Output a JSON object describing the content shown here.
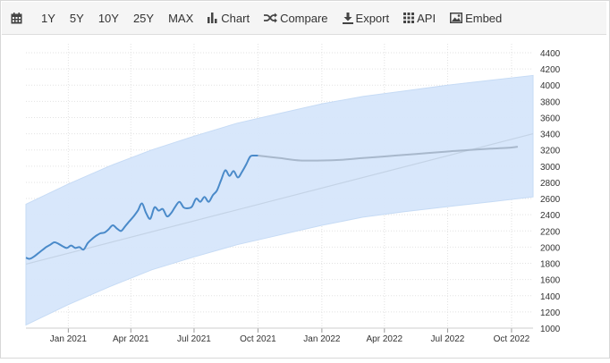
{
  "toolbar": {
    "calendar_icon": "calendar-icon",
    "ranges": [
      "1Y",
      "5Y",
      "10Y",
      "25Y",
      "MAX"
    ],
    "chart_label": "Chart",
    "compare_label": "Compare",
    "export_label": "Export",
    "api_label": "API",
    "embed_label": "Embed"
  },
  "chart_data": {
    "type": "line",
    "title": "",
    "xlabel": "",
    "ylabel": "",
    "ylim": [
      1000,
      4400
    ],
    "yticks": [
      1000,
      1200,
      1400,
      1600,
      1800,
      2000,
      2200,
      2400,
      2600,
      2800,
      3000,
      3200,
      3400,
      3600,
      3800,
      4000,
      4200,
      4400
    ],
    "xticks": [
      "2021-01-01",
      "2021-04-01",
      "2021-07-01",
      "2021-10-01",
      "2022-01-01",
      "2022-04-01",
      "2022-07-01",
      "2022-10-01"
    ],
    "xtick_labels": [
      "Jan 2021",
      "Apr 2021",
      "Jul 2021",
      "Oct 2021",
      "Jan 2022",
      "Apr 2022",
      "Jul 2022",
      "Oct 2022"
    ],
    "xlim": [
      "2020-11-01",
      "2022-11-01"
    ],
    "grid": true,
    "colors": {
      "actual": "#4a8ac9",
      "forecast": "#a8b8cc",
      "band": "#d6e6fb",
      "trend": "#c4d3e6"
    },
    "series": [
      {
        "role": "actual",
        "x": [
          "2020-11-01",
          "2020-11-06",
          "2020-11-12",
          "2020-11-18",
          "2020-11-24",
          "2020-11-30",
          "2020-12-06",
          "2020-12-12",
          "2020-12-18",
          "2020-12-24",
          "2020-12-30",
          "2021-01-05",
          "2021-01-11",
          "2021-01-17",
          "2021-01-23",
          "2021-01-29",
          "2021-02-04",
          "2021-02-10",
          "2021-02-16",
          "2021-02-22",
          "2021-02-28",
          "2021-03-06",
          "2021-03-12",
          "2021-03-18",
          "2021-03-24",
          "2021-03-30",
          "2021-04-05",
          "2021-04-11",
          "2021-04-17",
          "2021-04-23",
          "2021-04-29",
          "2021-05-05",
          "2021-05-11",
          "2021-05-17",
          "2021-05-23",
          "2021-05-29",
          "2021-06-04",
          "2021-06-10",
          "2021-06-16",
          "2021-06-22",
          "2021-06-28",
          "2021-07-04",
          "2021-07-10",
          "2021-07-16",
          "2021-07-22",
          "2021-07-28",
          "2021-08-03",
          "2021-08-09",
          "2021-08-15",
          "2021-08-21",
          "2021-08-27",
          "2021-09-02",
          "2021-09-08",
          "2021-09-14",
          "2021-09-20",
          "2021-09-26",
          "2021-10-01"
        ],
        "y": [
          1870,
          1855,
          1880,
          1920,
          1960,
          2000,
          2030,
          2060,
          2040,
          2010,
          1990,
          2020,
          1990,
          2000,
          1970,
          2050,
          2100,
          2140,
          2170,
          2180,
          2220,
          2270,
          2230,
          2200,
          2260,
          2320,
          2380,
          2450,
          2540,
          2420,
          2350,
          2490,
          2450,
          2470,
          2380,
          2420,
          2500,
          2560,
          2490,
          2480,
          2500,
          2600,
          2560,
          2620,
          2560,
          2640,
          2700,
          2830,
          2950,
          2880,
          2940,
          2860,
          2930,
          3020,
          3120,
          3130,
          3130
        ]
      },
      {
        "role": "forecast",
        "x": [
          "2021-10-01",
          "2021-11-01",
          "2021-12-01",
          "2022-01-01",
          "2022-02-01",
          "2022-03-01",
          "2022-04-01",
          "2022-05-01",
          "2022-06-01",
          "2022-07-01",
          "2022-08-01",
          "2022-09-01",
          "2022-10-01",
          "2022-10-10"
        ],
        "y": [
          3130,
          3100,
          3070,
          3070,
          3080,
          3100,
          3120,
          3140,
          3160,
          3180,
          3200,
          3215,
          3230,
          3240
        ]
      },
      {
        "role": "trend",
        "x": [
          "2020-11-01",
          "2022-11-01"
        ],
        "y": [
          1790,
          3400
        ]
      },
      {
        "role": "band",
        "x": [
          "2020-11-01",
          "2021-01-01",
          "2021-03-01",
          "2021-05-01",
          "2021-07-01",
          "2021-09-01",
          "2021-11-01",
          "2022-01-01",
          "2022-03-01",
          "2022-05-01",
          "2022-07-01",
          "2022-09-01",
          "2022-11-01"
        ],
        "upper": [
          2530,
          2780,
          3000,
          3200,
          3370,
          3530,
          3650,
          3770,
          3860,
          3930,
          4000,
          4060,
          4120
        ],
        "lower": [
          1040,
          1290,
          1510,
          1720,
          1880,
          2030,
          2150,
          2270,
          2370,
          2440,
          2500,
          2560,
          2620
        ]
      }
    ]
  }
}
